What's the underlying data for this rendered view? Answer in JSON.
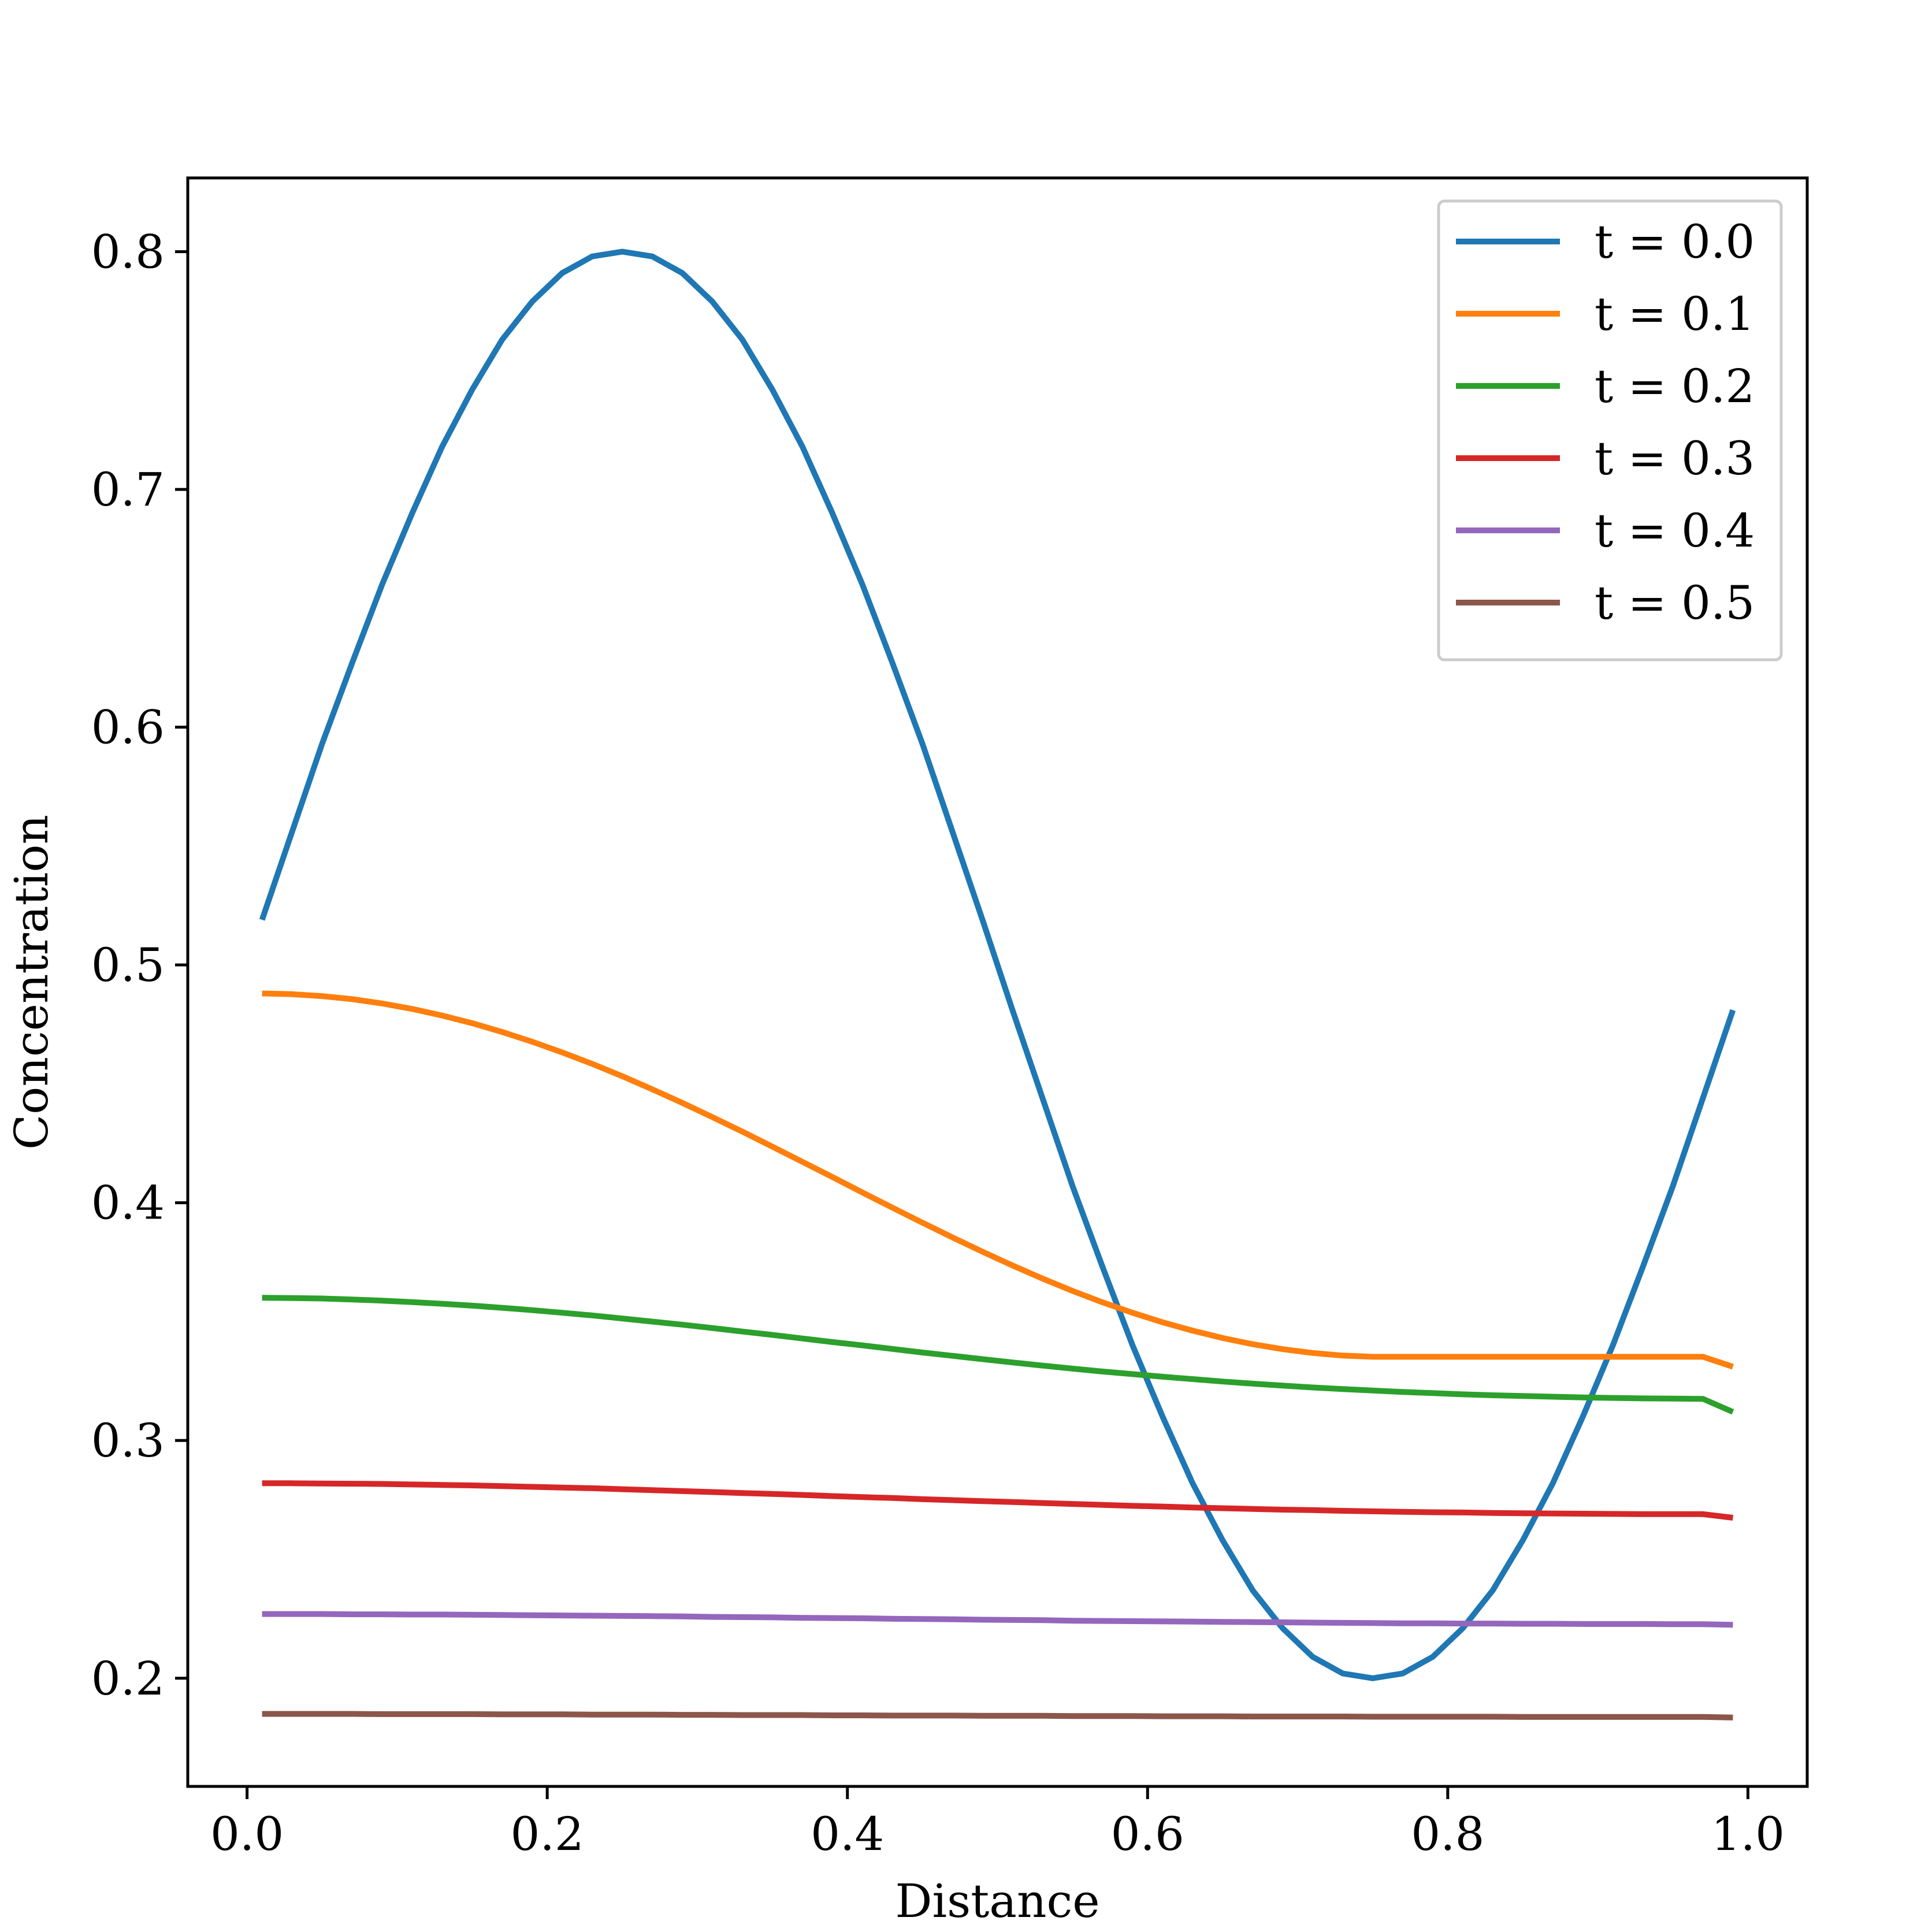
{
  "chart_data": {
    "type": "line",
    "title": "",
    "xlabel": "Distance",
    "ylabel": "Concentration",
    "xlim": [
      -0.0395,
      1.0395
    ],
    "ylim": [
      0.1545,
      0.831
    ],
    "xticks": [
      {
        "value": 0.0,
        "label": "0.0"
      },
      {
        "value": 0.2,
        "label": "0.2"
      },
      {
        "value": 0.4,
        "label": "0.4"
      },
      {
        "value": 0.6,
        "label": "0.6"
      },
      {
        "value": 0.8,
        "label": "0.8"
      },
      {
        "value": 1.0,
        "label": "1.0"
      }
    ],
    "yticks": [
      {
        "value": 0.2,
        "label": "0.2"
      },
      {
        "value": 0.3,
        "label": "0.3"
      },
      {
        "value": 0.4,
        "label": "0.4"
      },
      {
        "value": 0.5,
        "label": "0.5"
      },
      {
        "value": 0.6,
        "label": "0.6"
      },
      {
        "value": 0.7,
        "label": "0.7"
      },
      {
        "value": 0.8,
        "label": "0.8"
      }
    ],
    "grid": false,
    "legend_position": "upper right",
    "x": [
      0.01,
      0.03,
      0.05,
      0.07,
      0.09,
      0.11,
      0.13,
      0.15,
      0.17,
      0.19,
      0.21,
      0.23,
      0.25,
      0.27,
      0.29,
      0.31,
      0.33,
      0.35,
      0.37,
      0.39,
      0.41,
      0.43,
      0.45,
      0.47,
      0.49,
      0.51,
      0.53,
      0.55,
      0.57,
      0.59,
      0.61,
      0.63,
      0.65,
      0.67,
      0.69,
      0.71,
      0.73,
      0.75,
      0.77,
      0.79,
      0.81,
      0.83,
      0.85,
      0.87,
      0.89,
      0.91,
      0.93,
      0.95,
      0.97,
      0.99
    ],
    "series": [
      {
        "name": "t = 0.0",
        "color": "#1f77b4",
        "values": [
          0.519,
          0.556,
          0.593,
          0.627,
          0.66,
          0.69,
          0.718,
          0.742,
          0.763,
          0.779,
          0.791,
          0.798,
          0.8,
          0.798,
          0.791,
          0.779,
          0.763,
          0.742,
          0.718,
          0.69,
          0.66,
          0.627,
          0.593,
          0.556,
          0.519,
          0.481,
          0.444,
          0.407,
          0.373,
          0.34,
          0.31,
          0.282,
          0.258,
          0.237,
          0.221,
          0.209,
          0.202,
          0.2,
          0.202,
          0.209,
          0.221,
          0.237,
          0.258,
          0.282,
          0.31,
          0.34,
          0.373,
          0.407,
          0.444,
          0.481
        ]
      },
      {
        "name": "t = 0.1",
        "color": "#ff7f0e",
        "values": [
          0.488,
          0.4877,
          0.4869,
          0.4856,
          0.4838,
          0.4815,
          0.4787,
          0.4755,
          0.4718,
          0.4677,
          0.4632,
          0.4584,
          0.4532,
          0.4477,
          0.442,
          0.436,
          0.4299,
          0.4236,
          0.4172,
          0.4108,
          0.4043,
          0.3979,
          0.3916,
          0.3854,
          0.3794,
          0.3736,
          0.3681,
          0.3629,
          0.3581,
          0.3537,
          0.3497,
          0.3462,
          0.3431,
          0.3405,
          0.3384,
          0.3368,
          0.3357,
          0.3352,
          0.3352,
          0.3352,
          0.3352,
          0.3352,
          0.3352,
          0.3352,
          0.3352,
          0.3352,
          0.3352,
          0.3352,
          0.3352,
          0.331
        ]
      },
      {
        "name": "t = 0.2",
        "color": "#2ca02c",
        "values": [
          0.36,
          0.3599,
          0.3597,
          0.3593,
          0.3588,
          0.3582,
          0.3575,
          0.3567,
          0.3558,
          0.3548,
          0.3537,
          0.3526,
          0.3513,
          0.35,
          0.3487,
          0.3473,
          0.3458,
          0.3444,
          0.3429,
          0.3414,
          0.34,
          0.3385,
          0.337,
          0.3356,
          0.3342,
          0.3328,
          0.3315,
          0.3302,
          0.329,
          0.3279,
          0.3268,
          0.3258,
          0.3248,
          0.3239,
          0.3231,
          0.3223,
          0.3216,
          0.321,
          0.3204,
          0.3199,
          0.3194,
          0.319,
          0.3187,
          0.3184,
          0.3181,
          0.3179,
          0.3177,
          0.3176,
          0.3175,
          0.312
        ]
      },
      {
        "name": "t = 0.3",
        "color": "#d62728",
        "values": [
          0.282,
          0.282,
          0.2819,
          0.2818,
          0.2817,
          0.2815,
          0.2813,
          0.2811,
          0.2808,
          0.2805,
          0.2802,
          0.2799,
          0.2795,
          0.2791,
          0.2787,
          0.2783,
          0.2779,
          0.2775,
          0.2771,
          0.2766,
          0.2762,
          0.2758,
          0.2753,
          0.2749,
          0.2745,
          0.2741,
          0.2737,
          0.2733,
          0.2729,
          0.2725,
          0.2722,
          0.2718,
          0.2715,
          0.2712,
          0.2709,
          0.2707,
          0.2704,
          0.2702,
          0.27,
          0.2698,
          0.2697,
          0.2695,
          0.2694,
          0.2693,
          0.2692,
          0.2691,
          0.269,
          0.269,
          0.269,
          0.2675
        ]
      },
      {
        "name": "t = 0.4",
        "color": "#9467bd",
        "values": [
          0.227,
          0.227,
          0.227,
          0.2269,
          0.2269,
          0.2268,
          0.2268,
          0.2267,
          0.2266,
          0.2265,
          0.2264,
          0.2263,
          0.2262,
          0.2261,
          0.226,
          0.2258,
          0.2257,
          0.2256,
          0.2254,
          0.2253,
          0.2252,
          0.225,
          0.2249,
          0.2248,
          0.2246,
          0.2245,
          0.2244,
          0.2242,
          0.2241,
          0.224,
          0.2239,
          0.2238,
          0.2237,
          0.2236,
          0.2235,
          0.2234,
          0.2233,
          0.2232,
          0.2231,
          0.2231,
          0.223,
          0.223,
          0.2229,
          0.2229,
          0.2228,
          0.2228,
          0.2228,
          0.2227,
          0.2227,
          0.2225
        ]
      },
      {
        "name": "t = 0.5",
        "color": "#8c564b",
        "values": [
          0.185,
          0.185,
          0.185,
          0.185,
          0.1849,
          0.1849,
          0.1849,
          0.1849,
          0.1848,
          0.1848,
          0.1848,
          0.1847,
          0.1847,
          0.1847,
          0.1846,
          0.1846,
          0.1845,
          0.1845,
          0.1845,
          0.1844,
          0.1844,
          0.1843,
          0.1843,
          0.1843,
          0.1842,
          0.1842,
          0.1842,
          0.1841,
          0.1841,
          0.1841,
          0.184,
          0.184,
          0.184,
          0.1839,
          0.1839,
          0.1839,
          0.1839,
          0.1838,
          0.1838,
          0.1838,
          0.1838,
          0.1838,
          0.1837,
          0.1837,
          0.1837,
          0.1837,
          0.1837,
          0.1837,
          0.1837,
          0.1835
        ]
      }
    ]
  }
}
